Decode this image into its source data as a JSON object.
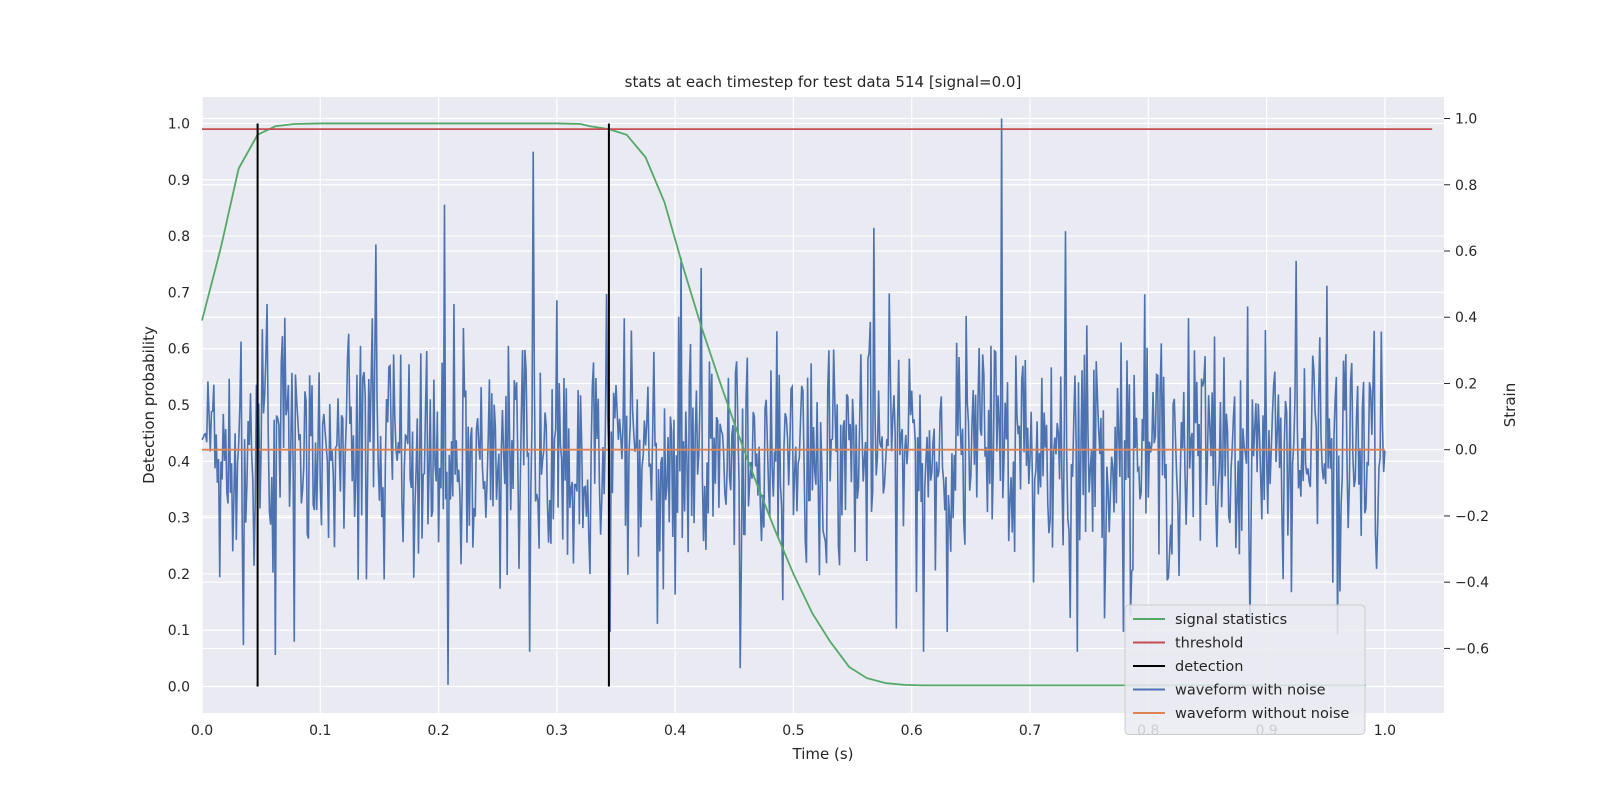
{
  "chart_data": {
    "type": "line",
    "title": "stats at each timestep for test data 514 [signal=0.0]",
    "xlabel": "Time (s)",
    "ylabel_left": "Detection probability",
    "ylabel_right": "Strain",
    "xlim": [
      0.0,
      1.05
    ],
    "ylim_left": [
      -0.047,
      1.047
    ],
    "ylim_right": [
      -0.795,
      1.065
    ],
    "x_ticks": [
      0.0,
      0.1,
      0.2,
      0.3,
      0.4,
      0.5,
      0.6,
      0.7,
      0.8,
      0.9,
      1.0
    ],
    "x_tick_labels": [
      "0.0",
      "0.1",
      "0.2",
      "0.3",
      "0.4",
      "0.5",
      "0.6",
      "0.7",
      "0.8",
      "0.9",
      "1.0"
    ],
    "y_left_ticks": [
      0.0,
      0.1,
      0.2,
      0.3,
      0.4,
      0.5,
      0.6,
      0.7,
      0.8,
      0.9,
      1.0
    ],
    "y_left_tick_labels": [
      "0.0",
      "0.1",
      "0.2",
      "0.3",
      "0.4",
      "0.5",
      "0.6",
      "0.7",
      "0.8",
      "0.9",
      "1.0"
    ],
    "y_right_ticks": [
      -0.6,
      -0.4,
      -0.2,
      0.0,
      0.2,
      0.4,
      0.6,
      0.8,
      1.0
    ],
    "y_right_tick_labels": [
      "−0.6",
      "−0.4",
      "−0.2",
      "0.0",
      "0.2",
      "0.4",
      "0.6",
      "0.8",
      "1.0"
    ],
    "grid": true,
    "legend_position": "bottom-right",
    "series": [
      {
        "name": "signal statistics",
        "axis": "left",
        "color": "#55a868",
        "x": [
          0.0,
          0.016,
          0.031,
          0.047,
          0.062,
          0.078,
          0.1,
          0.15,
          0.2,
          0.25,
          0.3,
          0.32,
          0.328,
          0.344,
          0.359,
          0.375,
          0.391,
          0.406,
          0.422,
          0.438,
          0.453,
          0.469,
          0.484,
          0.5,
          0.516,
          0.531,
          0.547,
          0.562,
          0.578,
          0.594,
          0.609,
          0.625,
          0.65,
          0.7,
          0.75,
          0.8,
          0.85,
          0.9,
          0.95,
          0.984
        ],
        "y": [
          0.65,
          0.78,
          0.92,
          0.98,
          0.995,
          0.999,
          1.0,
          1.0,
          1.0,
          1.0,
          1.0,
          0.999,
          0.995,
          0.99,
          0.98,
          0.94,
          0.86,
          0.75,
          0.64,
          0.54,
          0.45,
          0.36,
          0.28,
          0.2,
          0.13,
          0.08,
          0.035,
          0.015,
          0.006,
          0.003,
          0.002,
          0.002,
          0.002,
          0.002,
          0.002,
          0.002,
          0.002,
          0.002,
          0.002,
          0.002
        ]
      },
      {
        "name": "threshold",
        "axis": "left",
        "color": "#c44e52",
        "x": [
          0.0,
          1.04
        ],
        "y": [
          0.99,
          0.99
        ]
      },
      {
        "name": "detection",
        "axis": "left",
        "color": "#000000",
        "vlines": [
          0.047,
          0.344
        ],
        "ymin": 0.0,
        "ymax": 1.0
      },
      {
        "name": "waveform with noise",
        "axis": "right",
        "color": "#4c72b0",
        "noise_samples": 1001,
        "noise_std": 0.18,
        "peaks": [
          {
            "x": 0.035,
            "y": -0.59
          },
          {
            "x": 0.055,
            "y": 0.44
          },
          {
            "x": 0.062,
            "y": -0.62
          },
          {
            "x": 0.078,
            "y": -0.58
          },
          {
            "x": 0.147,
            "y": 0.62
          },
          {
            "x": 0.205,
            "y": 0.74
          },
          {
            "x": 0.208,
            "y": -0.71
          },
          {
            "x": 0.277,
            "y": -0.61
          },
          {
            "x": 0.28,
            "y": 0.9
          },
          {
            "x": 0.342,
            "y": 0.47
          },
          {
            "x": 0.405,
            "y": 0.58
          },
          {
            "x": 0.455,
            "y": -0.66
          },
          {
            "x": 0.568,
            "y": 0.67
          },
          {
            "x": 0.61,
            "y": -0.61
          },
          {
            "x": 0.676,
            "y": 1.0
          },
          {
            "x": 0.73,
            "y": 0.66
          },
          {
            "x": 0.74,
            "y": -0.61
          },
          {
            "x": 0.785,
            "y": -0.5
          },
          {
            "x": 0.925,
            "y": 0.57
          },
          {
            "x": 0.96,
            "y": -0.56
          }
        ]
      },
      {
        "name": "waveform without noise",
        "axis": "right",
        "color": "#dd8452",
        "x": [
          0.0,
          1.0
        ],
        "y": [
          0.0,
          0.0
        ]
      }
    ]
  }
}
